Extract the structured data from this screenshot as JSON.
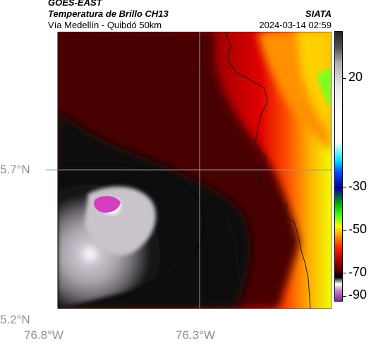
{
  "header": {
    "source": "GOES-EAST",
    "product": "Temperatura de Brillo CH13",
    "route": "Vía Medellín - Quibdó 50km",
    "org": "SIATA",
    "datetime": "2024-03-14 02:59"
  },
  "map": {
    "lat_labels": [
      "5.7°N",
      "5.2°N"
    ],
    "lon_labels": [
      "76.8°W",
      "76.3°W"
    ],
    "gridline_color": "#9a9a9a"
  },
  "colorbar": {
    "labels": [
      "20",
      "-30",
      "-50",
      "-70",
      "-90"
    ],
    "colors": {
      "warm": "#ffff00",
      "green": "#40ff20",
      "cyan": "#00e0ff",
      "blue": "#0000a0",
      "red": "#cc0000",
      "dark_red": "#600000",
      "black": "#050505",
      "white": "#ffffff",
      "magenta": "#d030c0"
    }
  }
}
